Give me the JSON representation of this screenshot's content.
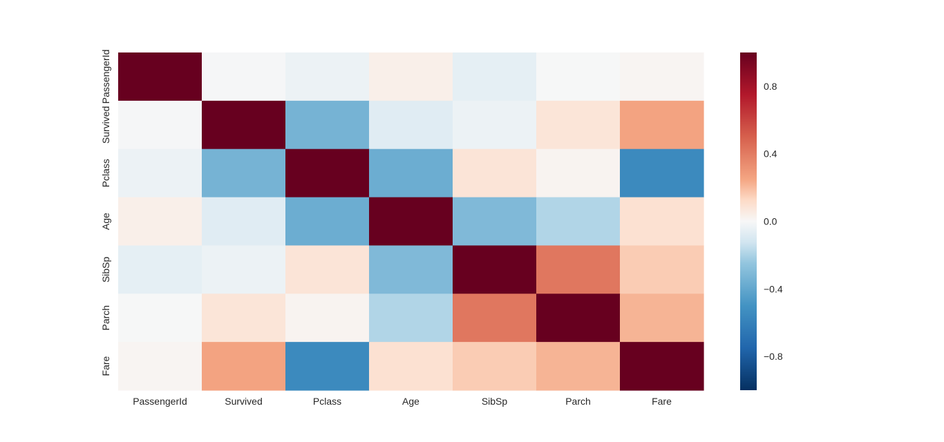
{
  "chart_data": {
    "type": "heatmap",
    "title": "",
    "xlabel": "",
    "ylabel": "",
    "x_labels": [
      "PassengerId",
      "Survived",
      "Pclass",
      "Age",
      "SibSp",
      "Parch",
      "Fare"
    ],
    "y_labels": [
      "PassengerId",
      "Survived",
      "Pclass",
      "Age",
      "SibSp",
      "Parch",
      "Fare"
    ],
    "values": [
      [
        1.0,
        -0.005,
        -0.035,
        0.037,
        -0.058,
        -0.002,
        0.013
      ],
      [
        -0.005,
        1.0,
        -0.338,
        -0.077,
        -0.035,
        0.082,
        0.257
      ],
      [
        -0.035,
        -0.338,
        1.0,
        -0.369,
        0.083,
        0.018,
        -0.549
      ],
      [
        0.037,
        -0.077,
        -0.369,
        1.0,
        -0.308,
        -0.189,
        0.096
      ],
      [
        -0.058,
        -0.035,
        0.083,
        -0.308,
        1.0,
        0.415,
        0.16
      ],
      [
        -0.002,
        0.082,
        0.018,
        -0.189,
        0.415,
        1.0,
        0.216
      ],
      [
        0.013,
        0.257,
        -0.549,
        0.096,
        0.16,
        0.216,
        1.0
      ]
    ],
    "colorbar": {
      "min": -1.0,
      "max": 1.0,
      "ticks": [
        {
          "value": 0.8,
          "label": "0.8"
        },
        {
          "value": 0.4,
          "label": "0.4"
        },
        {
          "value": 0.0,
          "label": "0.0"
        },
        {
          "value": -0.4,
          "label": "−0.4"
        },
        {
          "value": -0.8,
          "label": "−0.8"
        }
      ]
    },
    "colormap": "RdBu_r"
  }
}
